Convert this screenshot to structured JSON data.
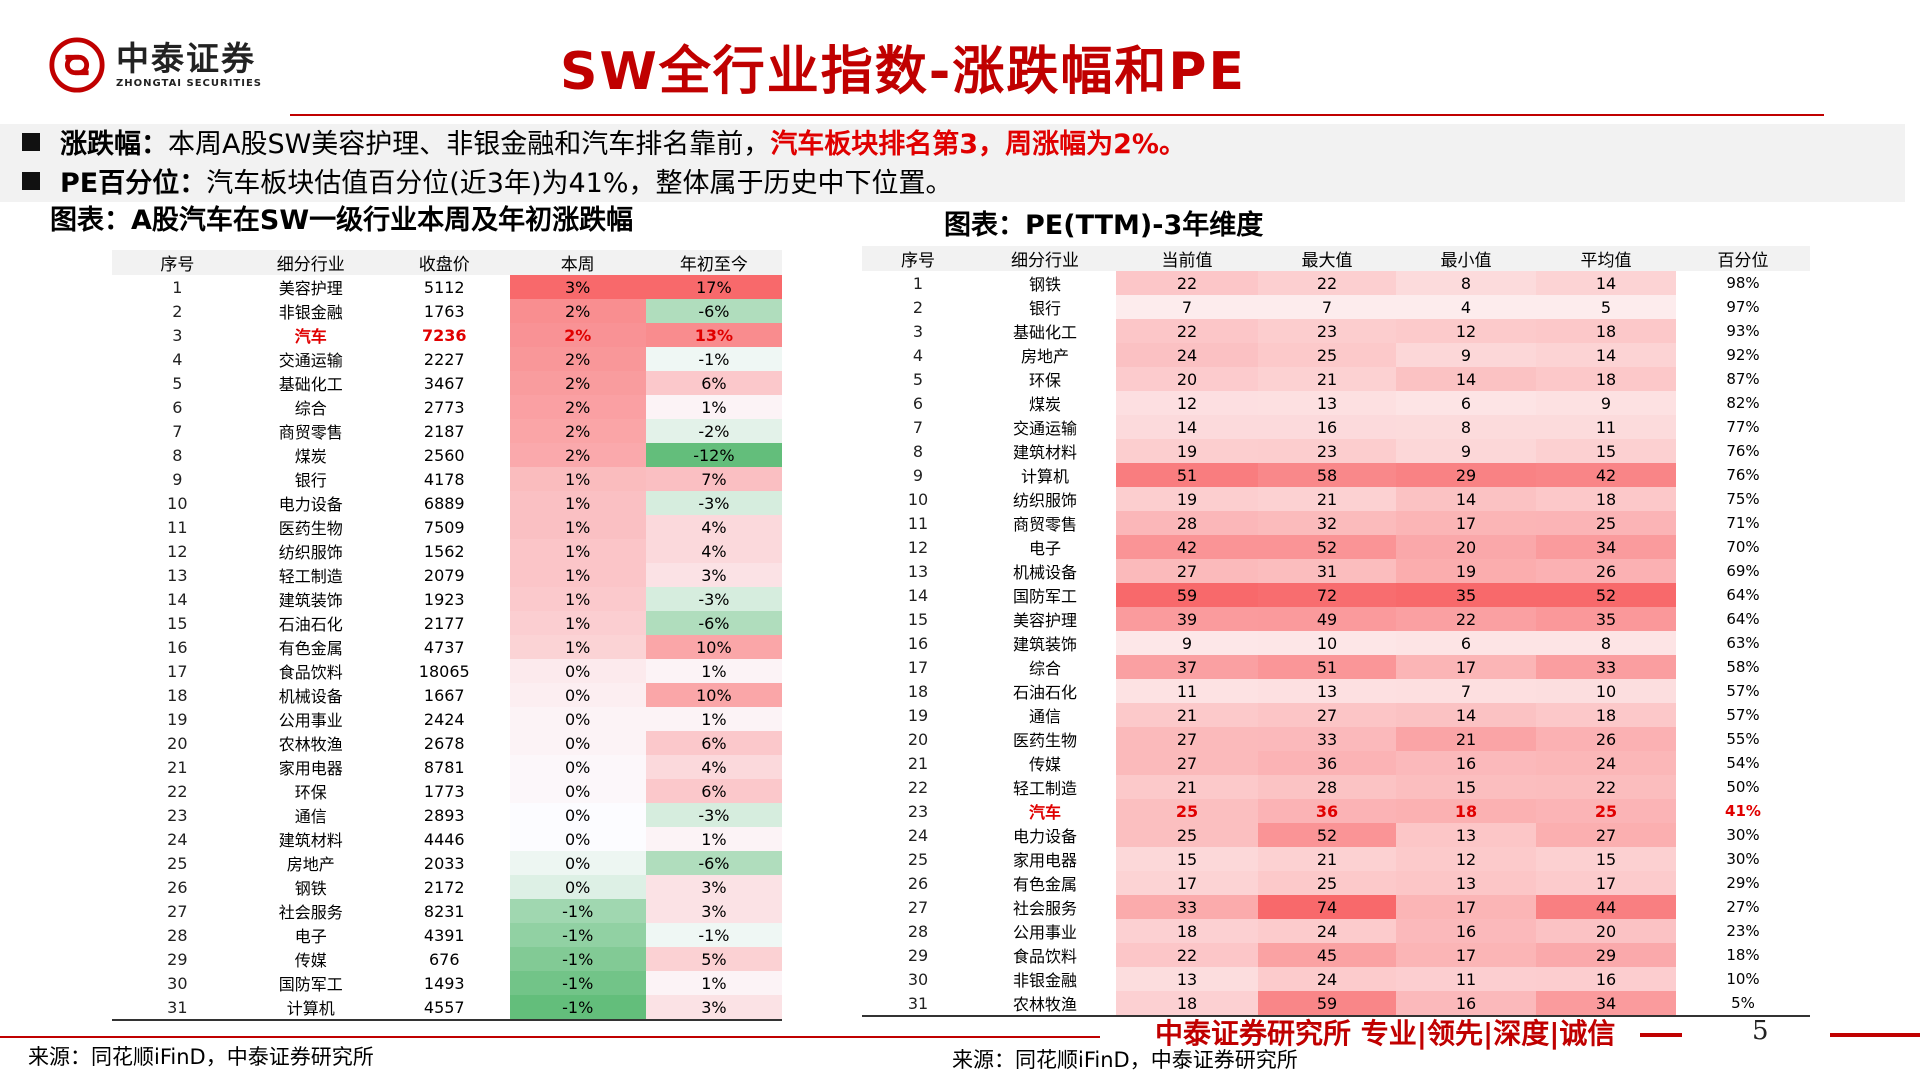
{
  "header": {
    "logo_cn": "中泰证券",
    "logo_en": "ZHONGTAI SECURITIES",
    "title": "SW全行业指数-涨跌幅和PE"
  },
  "bullets": {
    "b1_label": "涨跌幅：",
    "b1_text": "本周A股SW美容护理、非银金融和汽车排名靠前，",
    "b1_highlight": "汽车板块排名第3，周涨幅为2%。",
    "b2_label": "PE百分位：",
    "b2_text": "汽车板块估值百分位(近3年)为41%，整体属于历史中下位置。"
  },
  "table1": {
    "title": "图表：A股汽车在SW一级行业本周及年初涨跌幅",
    "headers": [
      "序号",
      "细分行业",
      "收盘价",
      "本周",
      "年初至今"
    ],
    "rows": [
      [
        "1",
        "美容护理",
        "5112",
        "3%",
        "17%"
      ],
      [
        "2",
        "非银金融",
        "1763",
        "2%",
        "-6%"
      ],
      [
        "3",
        "汽车",
        "7236",
        "2%",
        "13%"
      ],
      [
        "4",
        "交通运输",
        "2227",
        "2%",
        "-1%"
      ],
      [
        "5",
        "基础化工",
        "3467",
        "2%",
        "6%"
      ],
      [
        "6",
        "综合",
        "2773",
        "2%",
        "1%"
      ],
      [
        "7",
        "商贸零售",
        "2187",
        "2%",
        "-2%"
      ],
      [
        "8",
        "煤炭",
        "2560",
        "2%",
        "-12%"
      ],
      [
        "9",
        "银行",
        "4178",
        "1%",
        "7%"
      ],
      [
        "10",
        "电力设备",
        "6889",
        "1%",
        "-3%"
      ],
      [
        "11",
        "医药生物",
        "7509",
        "1%",
        "4%"
      ],
      [
        "12",
        "纺织服饰",
        "1562",
        "1%",
        "4%"
      ],
      [
        "13",
        "轻工制造",
        "2079",
        "1%",
        "3%"
      ],
      [
        "14",
        "建筑装饰",
        "1923",
        "1%",
        "-3%"
      ],
      [
        "15",
        "石油石化",
        "2177",
        "1%",
        "-6%"
      ],
      [
        "16",
        "有色金属",
        "4737",
        "1%",
        "10%"
      ],
      [
        "17",
        "食品饮料",
        "18065",
        "0%",
        "1%"
      ],
      [
        "18",
        "机械设备",
        "1667",
        "0%",
        "10%"
      ],
      [
        "19",
        "公用事业",
        "2424",
        "0%",
        "1%"
      ],
      [
        "20",
        "农林牧渔",
        "2678",
        "0%",
        "6%"
      ],
      [
        "21",
        "家用电器",
        "8781",
        "0%",
        "4%"
      ],
      [
        "22",
        "环保",
        "1773",
        "0%",
        "6%"
      ],
      [
        "23",
        "通信",
        "2893",
        "0%",
        "-3%"
      ],
      [
        "24",
        "建筑材料",
        "4446",
        "0%",
        "1%"
      ],
      [
        "25",
        "房地产",
        "2033",
        "0%",
        "-6%"
      ],
      [
        "26",
        "钢铁",
        "2172",
        "0%",
        "3%"
      ],
      [
        "27",
        "社会服务",
        "8231",
        "-1%",
        "3%"
      ],
      [
        "28",
        "电子",
        "4391",
        "-1%",
        "-1%"
      ],
      [
        "29",
        "传媒",
        "676",
        "-1%",
        "5%"
      ],
      [
        "30",
        "国防军工",
        "1493",
        "-1%",
        "1%"
      ],
      [
        "31",
        "计算机",
        "4557",
        "-1%",
        "3%"
      ]
    ],
    "week_vals": [
      3.2,
      2.4,
      2.3,
      2.2,
      2.1,
      2.0,
      1.9,
      1.8,
      1.4,
      1.3,
      1.3,
      1.2,
      1.2,
      1.1,
      1.0,
      0.9,
      0.4,
      0.3,
      0.2,
      0.2,
      0.1,
      0.1,
      0.0,
      0.0,
      -0.1,
      -0.2,
      -0.6,
      -0.7,
      -0.8,
      -0.9,
      -1.0
    ],
    "ytd_vals": [
      17,
      -6,
      13,
      -1,
      6,
      1,
      -2,
      -12,
      7,
      -3,
      4,
      4,
      3,
      -3,
      -6,
      10,
      1,
      10,
      1,
      6,
      4,
      6,
      -3,
      1,
      -6,
      3,
      3,
      -1,
      5,
      1,
      3
    ],
    "highlight_row": 3
  },
  "table2": {
    "title": "图表：PE(TTM)-3年维度",
    "headers": [
      "序号",
      "细分行业",
      "当前值",
      "最大值",
      "最小值",
      "平均值",
      "百分位"
    ],
    "rows": [
      [
        "1",
        "钢铁",
        "22",
        "22",
        "8",
        "14",
        "98%"
      ],
      [
        "2",
        "银行",
        "7",
        "7",
        "4",
        "5",
        "97%"
      ],
      [
        "3",
        "基础化工",
        "22",
        "23",
        "12",
        "18",
        "93%"
      ],
      [
        "4",
        "房地产",
        "24",
        "25",
        "9",
        "14",
        "92%"
      ],
      [
        "5",
        "环保",
        "20",
        "21",
        "14",
        "18",
        "87%"
      ],
      [
        "6",
        "煤炭",
        "12",
        "13",
        "6",
        "9",
        "82%"
      ],
      [
        "7",
        "交通运输",
        "14",
        "16",
        "8",
        "11",
        "77%"
      ],
      [
        "8",
        "建筑材料",
        "19",
        "23",
        "9",
        "15",
        "76%"
      ],
      [
        "9",
        "计算机",
        "51",
        "58",
        "29",
        "42",
        "76%"
      ],
      [
        "10",
        "纺织服饰",
        "19",
        "21",
        "14",
        "18",
        "75%"
      ],
      [
        "11",
        "商贸零售",
        "28",
        "32",
        "17",
        "25",
        "71%"
      ],
      [
        "12",
        "电子",
        "42",
        "52",
        "20",
        "34",
        "70%"
      ],
      [
        "13",
        "机械设备",
        "27",
        "31",
        "19",
        "26",
        "69%"
      ],
      [
        "14",
        "国防军工",
        "59",
        "72",
        "35",
        "52",
        "64%"
      ],
      [
        "15",
        "美容护理",
        "39",
        "49",
        "22",
        "35",
        "64%"
      ],
      [
        "16",
        "建筑装饰",
        "9",
        "10",
        "6",
        "8",
        "63%"
      ],
      [
        "17",
        "综合",
        "37",
        "51",
        "17",
        "33",
        "58%"
      ],
      [
        "18",
        "石油石化",
        "11",
        "13",
        "7",
        "10",
        "57%"
      ],
      [
        "19",
        "通信",
        "21",
        "27",
        "14",
        "18",
        "57%"
      ],
      [
        "20",
        "医药生物",
        "27",
        "33",
        "21",
        "26",
        "55%"
      ],
      [
        "21",
        "传媒",
        "27",
        "36",
        "16",
        "24",
        "54%"
      ],
      [
        "22",
        "轻工制造",
        "21",
        "28",
        "15",
        "22",
        "50%"
      ],
      [
        "23",
        "汽车",
        "25",
        "36",
        "18",
        "25",
        "41%"
      ],
      [
        "24",
        "电力设备",
        "25",
        "52",
        "13",
        "27",
        "30%"
      ],
      [
        "25",
        "家用电器",
        "15",
        "21",
        "12",
        "15",
        "30%"
      ],
      [
        "26",
        "有色金属",
        "17",
        "25",
        "13",
        "17",
        "29%"
      ],
      [
        "27",
        "社会服务",
        "33",
        "74",
        "17",
        "44",
        "27%"
      ],
      [
        "28",
        "公用事业",
        "18",
        "24",
        "16",
        "20",
        "23%"
      ],
      [
        "29",
        "食品饮料",
        "22",
        "45",
        "17",
        "29",
        "18%"
      ],
      [
        "30",
        "非银金融",
        "13",
        "24",
        "11",
        "16",
        "10%"
      ],
      [
        "31",
        "农林牧渔",
        "18",
        "59",
        "16",
        "34",
        "5%"
      ]
    ],
    "highlight_row": 23
  },
  "colors": {
    "accent": "#c00000",
    "highlight_text": "#e00000",
    "up": "#f8696b",
    "down": "#63be7b"
  },
  "footer": {
    "brand": "中泰证券研究所 专业|领先|深度|诚信",
    "page": "5",
    "source_left": "来源：同花顺iFinD，中泰证券研究所",
    "source_right": "来源：同花顺iFinD，中泰证券研究所"
  }
}
